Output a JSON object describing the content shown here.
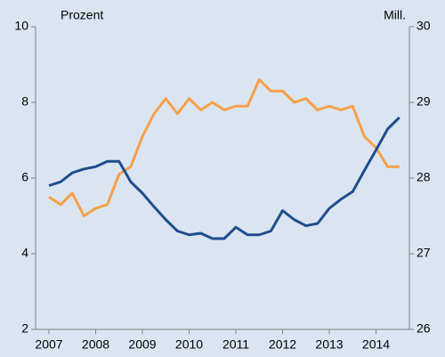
{
  "chart_data": {
    "type": "line",
    "ylabel": "Prozent",
    "y2label": "Mill.",
    "x": [
      2007,
      2007.25,
      2007.5,
      2007.75,
      2008,
      2008.25,
      2008.5,
      2008.75,
      2009,
      2009.25,
      2009.5,
      2009.75,
      2010,
      2010.25,
      2010.5,
      2010.75,
      2011,
      2011.25,
      2011.5,
      2011.75,
      2012,
      2012.25,
      2012.5,
      2012.75,
      2013,
      2013.25,
      2013.5,
      2013.75,
      2014,
      2014.25,
      2014.5
    ],
    "series": [
      {
        "name": "Prozent",
        "color": "#f7a04a",
        "values": [
          5.5,
          5.3,
          5.6,
          5.0,
          5.2,
          5.3,
          6.1,
          6.3,
          7.1,
          7.7,
          8.1,
          7.7,
          8.1,
          7.8,
          8.0,
          7.8,
          7.9,
          7.9,
          8.6,
          8.3,
          8.3,
          8.0,
          8.1,
          7.8,
          7.9,
          7.8,
          7.9,
          7.1,
          6.8,
          6.3,
          6.3
        ]
      },
      {
        "name": "Mill.",
        "color": "#1f4e8c",
        "axis": "y2",
        "values": [
          27.9,
          27.95,
          28.07,
          28.12,
          28.15,
          28.22,
          28.22,
          27.95,
          27.8,
          27.62,
          27.45,
          27.3,
          27.25,
          27.27,
          27.2,
          27.2,
          27.35,
          27.25,
          27.25,
          27.3,
          27.57,
          27.45,
          27.37,
          27.4,
          27.6,
          27.72,
          27.82,
          28.1,
          28.37,
          28.65,
          28.8
        ]
      }
    ],
    "xlim": [
      2006.714,
      2014.714
    ],
    "xticks": [
      2007,
      2008,
      2009,
      2010,
      2011,
      2012,
      2013,
      2014
    ],
    "ylim": [
      2,
      10
    ],
    "yticks": [
      2,
      4,
      6,
      8,
      10
    ],
    "y2lim": [
      26,
      30
    ],
    "y2ticks": [
      26,
      27,
      28,
      29,
      30
    ]
  }
}
